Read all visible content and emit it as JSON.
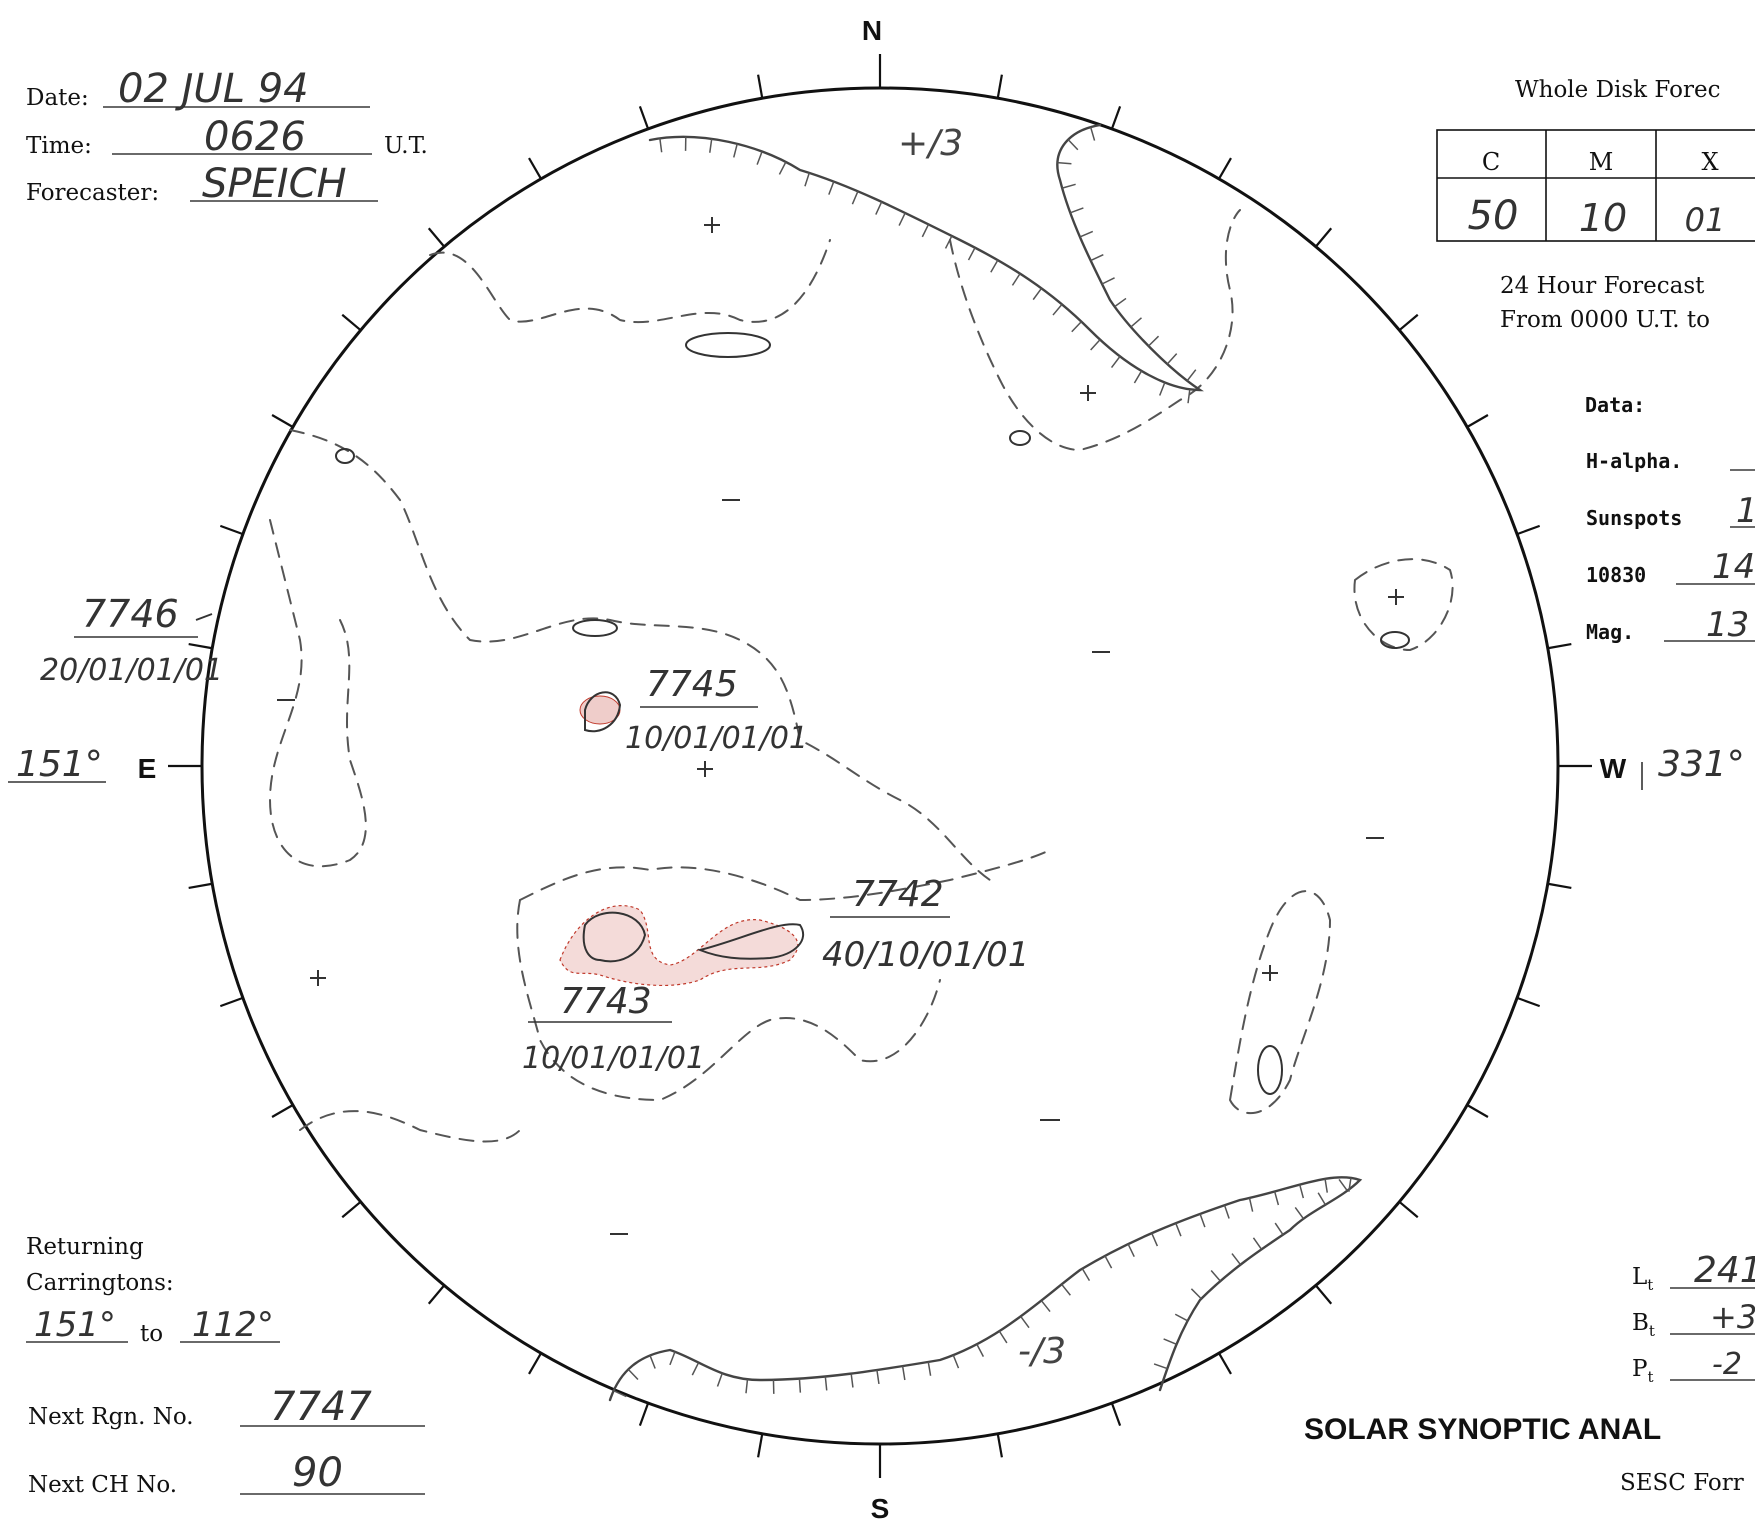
{
  "header": {
    "date_label": "Date:",
    "date_value": "02 JUL 94",
    "time_label": "Time:",
    "time_value": "0626",
    "time_unit": "U.T.",
    "forecaster_label": "Forecaster:",
    "forecaster_value": "SPEICH"
  },
  "forecast": {
    "title": "Whole Disk Forec",
    "classes": [
      "C",
      "M",
      "X"
    ],
    "probabilities": [
      "50",
      "10",
      "01"
    ],
    "hour_line1": "24 Hour Forecast",
    "hour_line2": "From 0000 U.T. to"
  },
  "data_panel": {
    "title": "Data:",
    "rows": [
      {
        "label": "H-alpha.",
        "value": ""
      },
      {
        "label": "Sunspots",
        "value": "1"
      },
      {
        "label": "10830",
        "value": "14"
      },
      {
        "label": "Mag.",
        "value": "13"
      }
    ]
  },
  "compass": {
    "north": "N",
    "south": "S",
    "east": "E",
    "west": "W"
  },
  "longitudes": {
    "east": "151°",
    "west": "331°"
  },
  "regions": [
    {
      "number": "7746",
      "code": "20/01/01/01"
    },
    {
      "number": "7745",
      "code": "10/01/01/01"
    },
    {
      "number": "7742",
      "code": "40/10/01/01"
    },
    {
      "number": "7743",
      "code": "10/01/01/01"
    }
  ],
  "disk_labels": {
    "north_ch": "+/3",
    "south_ch": "-/3"
  },
  "returning": {
    "line1": "Returning",
    "line2": "Carringtons:",
    "from": "151°",
    "to_word": "to",
    "to": "112°"
  },
  "next_region": {
    "label": "Next Rgn. No.",
    "value": "7747"
  },
  "next_ch": {
    "label": "Next CH No.",
    "value": "90"
  },
  "ephemeris": [
    {
      "label": "L",
      "sub": "t",
      "value": "241"
    },
    {
      "label": "B",
      "sub": "t",
      "value": "+3"
    },
    {
      "label": "P",
      "sub": "t",
      "value": "-2"
    }
  ],
  "footer": {
    "title": "SOLAR SYNOPTIC ANAL",
    "form": "SESC Forr"
  },
  "colors": {
    "ink": "#1a1a1a",
    "pencil": "#555555",
    "plage": "#c0392b"
  }
}
